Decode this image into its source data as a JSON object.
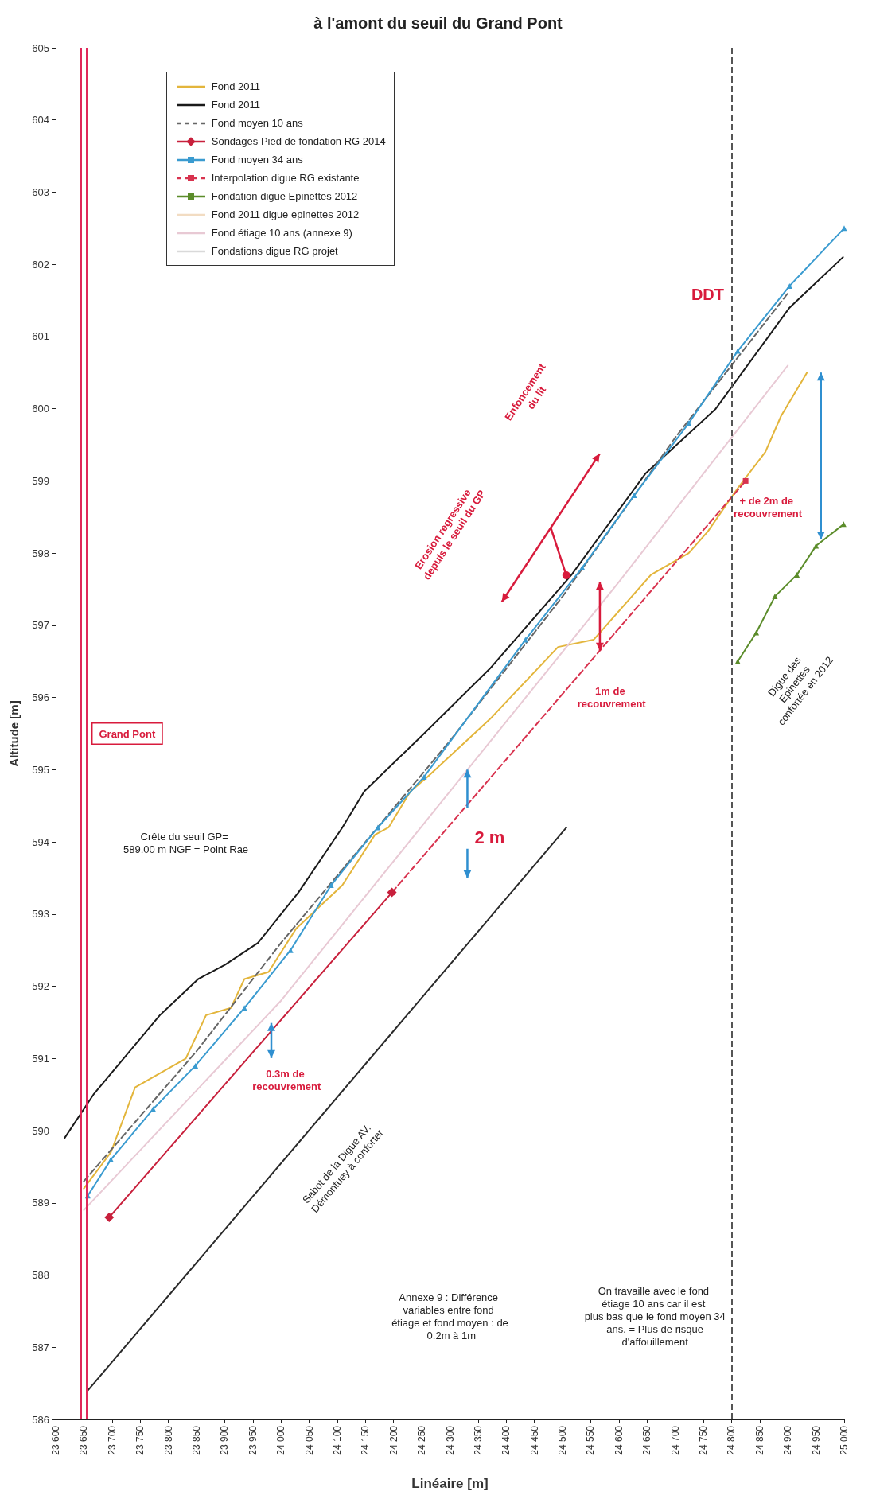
{
  "chart_data": {
    "type": "line",
    "title": "à l'amont du seuil du Grand Pont",
    "xlabel": "Linéaire [m]",
    "ylabel": "Altitude [m]",
    "xlim": [
      23600,
      25000
    ],
    "ylim": [
      586,
      605
    ],
    "xticks": [
      {
        "value": 23600,
        "label": "23 600"
      },
      {
        "value": 23650,
        "label": "23 650"
      },
      {
        "value": 23700,
        "label": "23 700"
      },
      {
        "value": 23750,
        "label": "23 750"
      },
      {
        "value": 23800,
        "label": "23 800"
      },
      {
        "value": 23850,
        "label": "23 850"
      },
      {
        "value": 23900,
        "label": "23 900"
      },
      {
        "value": 23950,
        "label": "23 950"
      },
      {
        "value": 24000,
        "label": "24 000"
      },
      {
        "value": 24050,
        "label": "24 050"
      },
      {
        "value": 24100,
        "label": "24 100"
      },
      {
        "value": 24150,
        "label": "24 150"
      },
      {
        "value": 24200,
        "label": "24 200"
      },
      {
        "value": 24250,
        "label": "24 250"
      },
      {
        "value": 24300,
        "label": "24 300"
      },
      {
        "value": 24350,
        "label": "24 350"
      },
      {
        "value": 24400,
        "label": "24 400"
      },
      {
        "value": 24450,
        "label": "24 450"
      },
      {
        "value": 24500,
        "label": "24 500"
      },
      {
        "value": 24550,
        "label": "24 550"
      },
      {
        "value": 24600,
        "label": "24 600"
      },
      {
        "value": 24650,
        "label": "24 650"
      },
      {
        "value": 24700,
        "label": "24 700"
      },
      {
        "value": 24750,
        "label": "24 750"
      },
      {
        "value": 24800,
        "label": "24 800"
      },
      {
        "value": 24850,
        "label": "24 850"
      },
      {
        "value": 24900,
        "label": "24 900"
      },
      {
        "value": 24950,
        "label": "24 950"
      },
      {
        "value": 25000,
        "label": "25 000"
      }
    ],
    "yticks": [
      586,
      587,
      588,
      589,
      590,
      591,
      592,
      593,
      594,
      595,
      596,
      597,
      598,
      599,
      600,
      601,
      602,
      603,
      604,
      605
    ],
    "legend": "top left",
    "marker": "none",
    "line_style": "solid",
    "series": [
      {
        "name": "Fond 2011",
        "color": "#e3b53b",
        "x": [
          23650,
          23698,
          23741,
          23831,
          23867,
          23911,
          23935,
          23978,
          24027,
          24109,
          24167,
          24191,
          24230,
          24260,
          24371,
          24492,
          24555,
          24657,
          24724,
          24758,
          24811,
          24860,
          24888,
          24934
        ],
        "values": [
          589.2,
          589.7,
          590.6,
          591.0,
          591.6,
          591.7,
          592.1,
          592.2,
          592.8,
          593.4,
          594.1,
          594.2,
          594.7,
          594.9,
          595.7,
          596.7,
          596.8,
          597.7,
          598.0,
          598.3,
          598.9,
          599.4,
          599.9,
          600.5
        ]
      },
      {
        "name": "Fond 2011",
        "color": "#1a1a1a",
        "x": [
          23616,
          23667,
          23785,
          23853,
          23901,
          23959,
          24031,
          24109,
          24148,
          24254,
          24371,
          24516,
          24647,
          24772,
          24903,
          24998
        ],
        "values": [
          589.9,
          590.5,
          591.6,
          592.1,
          592.3,
          592.6,
          593.3,
          594.2,
          594.7,
          595.5,
          596.4,
          597.7,
          599.1,
          600.0,
          601.4,
          602.1
        ]
      },
      {
        "name": "Fond moyen 10 ans",
        "color": "#666666",
        "line_style": "dashed",
        "x": [
          23650,
          23850,
          24000,
          24150,
          24300,
          24500,
          24700,
          24900
        ],
        "values": [
          589.3,
          591.1,
          592.6,
          594.0,
          595.4,
          597.4,
          599.6,
          601.6
        ]
      },
      {
        "name": "Sondages Pied de fondation RG 2014",
        "color": "#c8203c",
        "marker": "diamond",
        "x": [
          23695,
          24197
        ],
        "values": [
          588.8,
          593.3
        ]
      },
      {
        "name": "Fond moyen 34 ans",
        "color": "#3a9bd0",
        "marker": "triangle",
        "x": [
          23657,
          23698,
          23773,
          23848,
          23935,
          24017,
          24089,
          24172,
          24254,
          24434,
          24535,
          24627,
          24724,
          24811,
          24903,
          25000
        ],
        "values": [
          589.1,
          589.6,
          590.3,
          590.9,
          591.7,
          592.5,
          593.4,
          594.2,
          594.9,
          596.8,
          597.8,
          598.8,
          599.8,
          600.8,
          601.7,
          602.5
        ]
      },
      {
        "name": "Interpolation digue RG existante",
        "color": "#d8324e",
        "line_style": "dashed",
        "marker": "square",
        "x": [
          24197,
          24825
        ],
        "values": [
          593.3,
          599.0
        ]
      },
      {
        "name": "Fondation digue Epinettes 2012",
        "color": "#5b8c2a",
        "marker": "triangle",
        "x": [
          24811,
          24844,
          24877,
          24916,
          24950,
          24999
        ],
        "values": [
          596.5,
          596.9,
          597.4,
          597.7,
          598.1,
          598.4
        ]
      },
      {
        "name": "Fond 2011 digue epinettes 2012",
        "color": "#f2dcc2"
      },
      {
        "name": "Fond étiage 10 ans (annexe 9)",
        "color": "#e8c9d4",
        "x": [
          23650,
          24000,
          24300,
          24600,
          24900
        ],
        "values": [
          588.9,
          591.8,
          594.7,
          597.6,
          600.6
        ]
      },
      {
        "name": "Fondations digue RG projet",
        "color": "#d9d9d9"
      },
      {
        "color": "#2a2a2a",
        "x": [
          23657,
          24507
        ],
        "values": [
          586.4,
          594.2
        ]
      }
    ],
    "ref_lines": [
      {
        "axis": "x",
        "value": 23645,
        "label": "Grand Pont",
        "color": "#e0285a"
      },
      {
        "axis": "x",
        "value": 23655,
        "color": "#e0285a"
      },
      {
        "axis": "x",
        "value": 24800,
        "label": "DDT",
        "color": "#555555",
        "line_style": "dashed"
      }
    ],
    "annotations": [
      "+ de 2m de recouvrement",
      "1m de recouvrement",
      {
        "text": "2 m",
        "x": 24331,
        "y": 595.0
      },
      "0.3m de recouvrement",
      "Erosion regressive depuis le seuil du GP",
      "Enfoncement du lit",
      "Sabot de la Digue AV. Démontuey à conforter",
      "Digue des Epinettes confortée en 2012",
      "Crête du seuil GP= 589.00 m NGF = Point Rae",
      "Annexe 9 : Différence variables entre fond étiage et fond moyen : de 0.2m à 1m",
      "On travaille avec le fond étiage 10 ans car il est plus bas que le fond moyen 34 ans. = Plus de risque d'affouillement"
    ]
  }
}
